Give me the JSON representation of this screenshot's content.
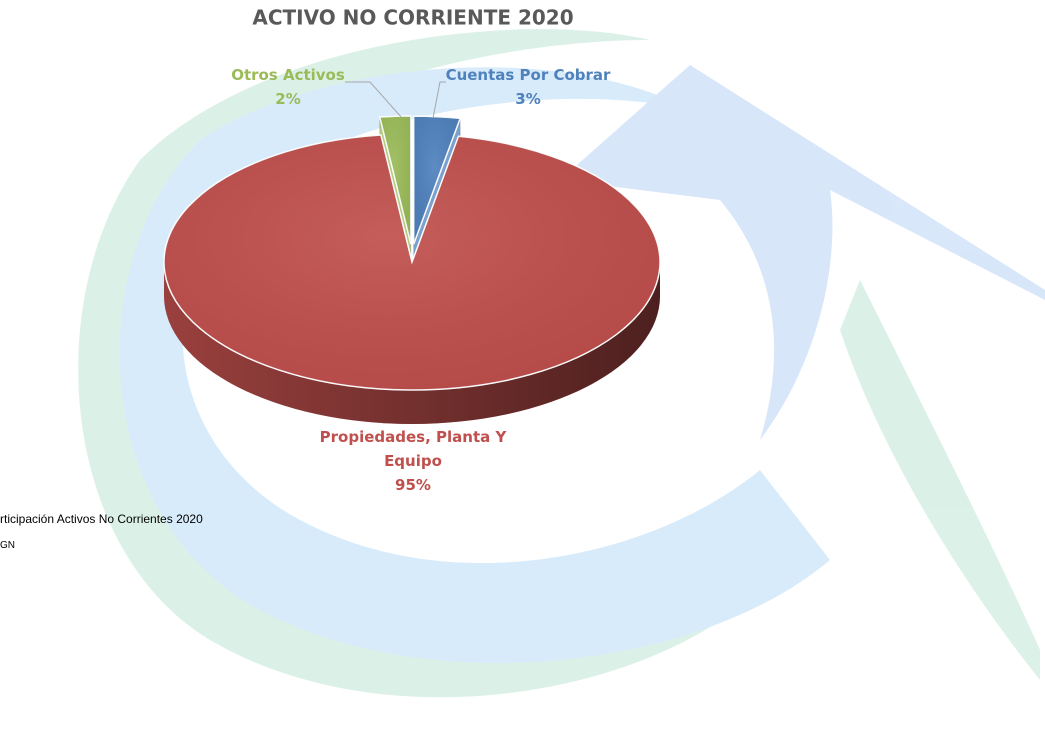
{
  "chart_data": {
    "type": "pie",
    "title": "ACTIVO NO CORRIENTE 2020",
    "categories": [
      "Cuentas Por Cobrar",
      "Propiedades, Planta Y Equipo",
      "Otros Activos"
    ],
    "values": [
      3,
      95,
      2
    ],
    "value_labels": [
      "3%",
      "95%",
      "2%"
    ],
    "colors": [
      "#4f81bd",
      "#c0504d",
      "#9bbb59"
    ]
  },
  "footer": {
    "caption": "rticipación Activos No Corrientes 2020",
    "source": "GN"
  }
}
